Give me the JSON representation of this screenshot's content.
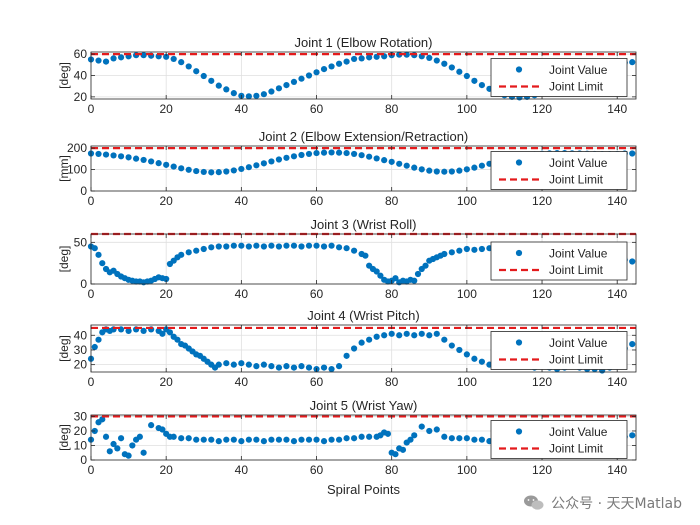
{
  "chart_data": [
    {
      "type": "scatter",
      "title": "Joint 1 (Elbow Rotation)",
      "ylabel": "[deg]",
      "xlabel": "",
      "xlim": [
        0,
        145
      ],
      "ylim": [
        18,
        62
      ],
      "yticks": [
        20,
        40,
        60
      ],
      "xticks": [
        0,
        20,
        40,
        60,
        80,
        100,
        120,
        140
      ],
      "limit": 60,
      "legend": [
        "Joint Value",
        "Joint Limit"
      ],
      "legend_position": "right",
      "grid": true,
      "x": [
        0,
        2,
        4,
        6,
        8,
        10,
        12,
        14,
        16,
        18,
        20,
        22,
        24,
        26,
        28,
        30,
        32,
        34,
        36,
        38,
        40,
        42,
        44,
        46,
        48,
        50,
        52,
        54,
        56,
        58,
        60,
        62,
        64,
        66,
        68,
        70,
        72,
        74,
        76,
        78,
        80,
        82,
        84,
        86,
        88,
        90,
        92,
        94,
        96,
        98,
        100,
        102,
        104,
        106,
        108,
        110,
        112,
        114,
        116,
        118,
        120,
        122,
        124,
        126,
        128,
        130,
        132,
        134,
        136,
        138,
        140,
        142,
        144
      ],
      "values": [
        55,
        54,
        53,
        56,
        57,
        58,
        59,
        59,
        58.5,
        58,
        57.5,
        55.5,
        52.5,
        48.5,
        44,
        39.5,
        35,
        30.5,
        27,
        23.5,
        21,
        20.5,
        21,
        22.5,
        25,
        28,
        31,
        34,
        37,
        40,
        43,
        46,
        48.5,
        51,
        53,
        55.5,
        56,
        57,
        57.5,
        58,
        59,
        59.5,
        59.5,
        59,
        58,
        56.5,
        54,
        51,
        47.5,
        43.5,
        39.5,
        35,
        31,
        27.5,
        24,
        21.5,
        20,
        19.5,
        20,
        21.5,
        24,
        26,
        29,
        33,
        36,
        40,
        43,
        46,
        48,
        50,
        51,
        52,
        52.5
      ]
    },
    {
      "type": "scatter",
      "title": "Joint 2 (Elbow Extension/Retraction)",
      "ylabel": "[mm]",
      "xlabel": "",
      "xlim": [
        0,
        145
      ],
      "ylim": [
        0,
        210
      ],
      "yticks": [
        0,
        100,
        200
      ],
      "xticks": [
        0,
        20,
        40,
        60,
        80,
        100,
        120,
        140
      ],
      "limit": 200,
      "legend": [
        "Joint Value",
        "Joint Limit"
      ],
      "legend_position": "right",
      "grid": true,
      "x": [
        0,
        2,
        4,
        6,
        8,
        10,
        12,
        14,
        16,
        18,
        20,
        22,
        24,
        26,
        28,
        30,
        32,
        34,
        36,
        38,
        40,
        42,
        44,
        46,
        48,
        50,
        52,
        54,
        56,
        58,
        60,
        62,
        64,
        66,
        68,
        70,
        72,
        74,
        76,
        78,
        80,
        82,
        84,
        86,
        88,
        90,
        92,
        94,
        96,
        98,
        100,
        102,
        104,
        106,
        108,
        110,
        112,
        114,
        116,
        118,
        120,
        122,
        124,
        126,
        128,
        130,
        132,
        134,
        136,
        138,
        140,
        142,
        144
      ],
      "values": [
        175,
        173,
        170,
        166,
        162,
        157,
        151,
        145,
        138,
        130,
        122,
        114,
        106,
        99,
        93,
        89,
        87,
        88,
        91,
        96,
        103,
        111,
        120,
        129,
        138,
        147,
        155,
        162,
        168,
        173,
        177,
        179,
        180,
        179,
        177,
        173,
        167,
        160,
        152,
        144,
        136,
        127,
        118,
        109,
        101,
        95,
        91,
        90,
        91,
        95,
        101,
        109,
        118,
        127,
        136,
        145,
        153,
        160,
        166,
        171,
        174,
        176,
        177,
        177,
        176,
        175,
        174,
        173,
        172,
        172,
        173,
        175,
        175
      ]
    },
    {
      "type": "scatter",
      "title": "Joint 3 (Wrist Roll)",
      "ylabel": "[deg]",
      "xlabel": "",
      "xlim": [
        0,
        145
      ],
      "ylim": [
        0,
        60
      ],
      "yticks": [
        0,
        50
      ],
      "xticks": [
        0,
        20,
        40,
        60,
        80,
        100,
        120,
        140
      ],
      "limit": 60,
      "legend": [
        "Joint Value",
        "Joint Limit"
      ],
      "legend_position": "right",
      "grid": true,
      "x": [
        0,
        1,
        2,
        3,
        4,
        5,
        6,
        7,
        8,
        9,
        10,
        11,
        12,
        13,
        14,
        15,
        16,
        17,
        18,
        19,
        20,
        21,
        22,
        23,
        24,
        26,
        28,
        30,
        32,
        34,
        36,
        38,
        40,
        42,
        44,
        46,
        48,
        50,
        52,
        54,
        56,
        58,
        60,
        62,
        64,
        66,
        68,
        70,
        72,
        73,
        74,
        75,
        76,
        77,
        78,
        79,
        80,
        81,
        82,
        83,
        84,
        85,
        86,
        87,
        88,
        89,
        90,
        91,
        92,
        93,
        94,
        96,
        98,
        100,
        102,
        104,
        106,
        108,
        110,
        112,
        114,
        116,
        118,
        120,
        122,
        124,
        126,
        128,
        130,
        132,
        134,
        136,
        138,
        140,
        142,
        144
      ],
      "values": [
        45,
        43,
        35,
        25,
        18,
        14,
        16,
        12,
        9,
        7,
        5,
        4,
        3,
        3,
        2,
        3,
        4,
        6,
        8,
        7,
        6,
        24,
        28,
        32,
        35,
        38,
        40,
        42,
        44,
        45,
        45,
        46,
        46,
        45,
        46,
        45,
        46,
        45,
        46,
        46,
        45,
        46,
        46,
        45,
        46,
        44,
        43,
        40,
        36,
        34,
        22,
        18,
        15,
        10,
        5,
        3,
        4,
        7,
        2,
        4,
        3,
        5,
        4,
        12,
        18,
        22,
        28,
        30,
        32,
        34,
        36,
        38,
        40,
        42,
        41,
        42,
        43,
        42,
        43,
        42,
        44,
        43,
        42,
        43,
        42,
        41,
        40,
        39,
        38,
        36,
        34,
        32,
        30,
        30,
        29,
        27
      ]
    },
    {
      "type": "scatter",
      "title": "Joint 4 (Wrist Pitch)",
      "ylabel": "[deg]",
      "xlabel": "",
      "xlim": [
        0,
        145
      ],
      "ylim": [
        15,
        47
      ],
      "yticks": [
        20,
        30,
        40
      ],
      "xticks": [
        0,
        20,
        40,
        60,
        80,
        100,
        120,
        140
      ],
      "limit": 45,
      "legend": [
        "Joint Value",
        "Joint Limit"
      ],
      "legend_position": "right",
      "grid": true,
      "x": [
        0,
        1,
        2,
        3,
        4,
        5,
        6,
        8,
        10,
        12,
        14,
        16,
        18,
        19,
        20,
        21,
        22,
        23,
        24,
        25,
        26,
        27,
        28,
        29,
        30,
        31,
        32,
        33,
        34,
        36,
        38,
        40,
        42,
        44,
        46,
        48,
        50,
        52,
        54,
        56,
        58,
        60,
        62,
        64,
        66,
        68,
        70,
        72,
        74,
        76,
        78,
        80,
        82,
        84,
        86,
        88,
        90,
        92,
        94,
        96,
        98,
        100,
        102,
        104,
        106,
        108,
        110,
        112,
        114,
        116,
        118,
        120,
        122,
        124,
        126,
        128,
        130,
        132,
        134,
        136,
        138,
        140,
        142,
        144
      ],
      "values": [
        24,
        32,
        37,
        42,
        44,
        43,
        44,
        44,
        43,
        44,
        43,
        44,
        43,
        41,
        44,
        42,
        39,
        37,
        34,
        33,
        31,
        29,
        27,
        26,
        24,
        22,
        20,
        18,
        20,
        21,
        20,
        21,
        20,
        19,
        20,
        19,
        18,
        19,
        18,
        19,
        18,
        17,
        18,
        17,
        19,
        26,
        31,
        35,
        37,
        39,
        40,
        41,
        40,
        41,
        40,
        41,
        40,
        41,
        37,
        33,
        30,
        27,
        24,
        22,
        20,
        21,
        20,
        19,
        20,
        19,
        18,
        19,
        18,
        17,
        18,
        19,
        18,
        17,
        17,
        16,
        18,
        24,
        31,
        34
      ]
    },
    {
      "type": "scatter",
      "title": "Joint 5 (Wrist Yaw)",
      "ylabel": "[deg]",
      "xlabel": "Spiral Points",
      "xlim": [
        0,
        145
      ],
      "ylim": [
        0,
        31
      ],
      "yticks": [
        0,
        10,
        20,
        30
      ],
      "xticks": [
        0,
        20,
        40,
        60,
        80,
        100,
        120,
        140
      ],
      "limit": 30,
      "legend": [
        "Joint Value",
        "Joint Limit"
      ],
      "legend_position": "right",
      "grid": true,
      "x": [
        0,
        1,
        2,
        3,
        4,
        5,
        6,
        7,
        8,
        9,
        10,
        11,
        12,
        13,
        14,
        16,
        18,
        19,
        20,
        21,
        22,
        24,
        26,
        28,
        30,
        32,
        34,
        36,
        38,
        40,
        42,
        44,
        46,
        48,
        50,
        52,
        54,
        56,
        58,
        60,
        62,
        64,
        66,
        68,
        70,
        72,
        74,
        76,
        77,
        78,
        79,
        80,
        81,
        82,
        83,
        84,
        85,
        86,
        88,
        90,
        92,
        94,
        96,
        98,
        100,
        102,
        104,
        106,
        108,
        110,
        112,
        114,
        116,
        118,
        120,
        122,
        124,
        126,
        128,
        130,
        132,
        134,
        136,
        138,
        140,
        142,
        144
      ],
      "values": [
        14,
        20,
        26,
        28,
        16,
        6,
        11,
        8,
        15,
        4,
        3,
        10,
        14,
        16,
        5,
        24,
        22,
        21,
        18,
        16,
        16,
        15,
        15,
        14,
        14,
        14,
        13,
        14,
        14,
        13,
        14,
        14,
        13,
        14,
        14,
        14,
        13,
        14,
        14,
        14,
        13,
        14,
        14,
        15,
        15,
        16,
        16,
        16,
        17,
        19,
        18,
        5,
        4,
        8,
        7,
        12,
        14,
        17,
        23,
        20,
        21,
        16,
        15,
        15,
        15,
        14,
        14,
        13,
        14,
        14,
        13,
        14,
        14,
        13,
        14,
        14,
        14,
        15,
        15,
        15,
        14,
        15,
        15,
        15,
        16,
        16,
        17
      ]
    }
  ],
  "watermark": {
    "text": "公众号 · 天天Matlab"
  },
  "colors": {
    "marker": "#0072BD",
    "limit": "#E41A1C",
    "grid": "#dfdfdf",
    "axis": "#262626"
  }
}
